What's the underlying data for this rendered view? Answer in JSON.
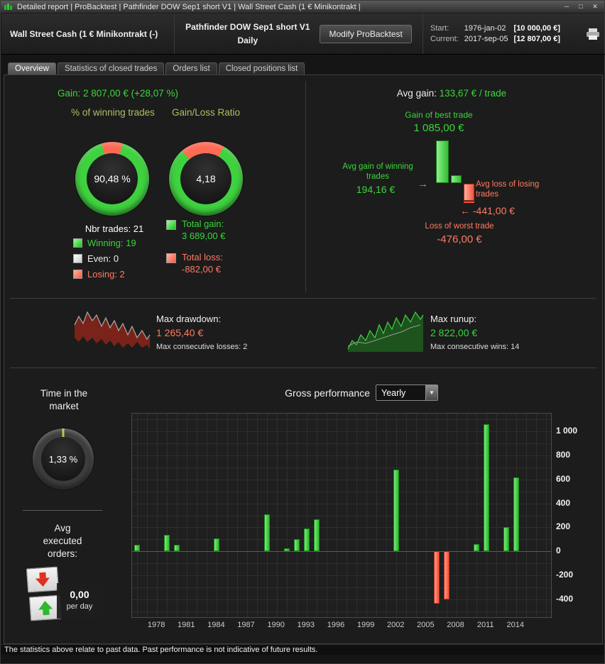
{
  "colors": {
    "win": "#3fd23f",
    "loss": "#ff6a52",
    "win_text": "#3ad63a",
    "loss_text": "#ff7a62",
    "header_green": "#a8c162",
    "zero_line": "#4646ff",
    "time_marker": "#b8c24e"
  },
  "titlebar": {
    "title_text": "Detailed report | ProBacktest | Pathfinder DOW Sep1 short V1 | Wall Street Cash (1 € Minikontrakt |",
    "minimize": "─",
    "maximize": "□",
    "close": "✕"
  },
  "header": {
    "instrument": "Wall Street Cash (1 € Minikontrakt (-)",
    "system_name": "Pathfinder DOW Sep1 short V1",
    "timeframe": "Daily",
    "modify_button": "Modify ProBacktest",
    "start_label": "Start:",
    "start_date": "1976-jan-02",
    "start_value": "[10 000,00 €]",
    "current_label": "Current:",
    "current_date": "2017-sep-05",
    "current_value": "[12 807,00 €]"
  },
  "tabs": [
    {
      "label": "Overview"
    },
    {
      "label": "Statistics of closed trades"
    },
    {
      "label": "Orders list"
    },
    {
      "label": "Closed positions list"
    }
  ],
  "overview": {
    "gain_label": "Gain:",
    "gain_value": "2 807,00 € (+28,07 %)",
    "donut_winning": {
      "label": "% of winning trades",
      "value": "90,48 %",
      "pct": 90.48
    },
    "donut_ratio": {
      "label": "Gain/Loss Ratio",
      "value": "4,18",
      "ratio": 4.18
    },
    "nbr_trades": "Nbr trades: 21",
    "legend": {
      "winning": "Winning: 19",
      "even": "Even: 0",
      "losing": "Losing: 2"
    },
    "total_gain_label": "Total gain:",
    "total_gain_value": "3 689,00 €",
    "total_loss_label": "Total loss:",
    "total_loss_value": "-882,00 €",
    "avg_gain_label": "Avg gain:",
    "avg_gain_value": "133,67 € / trade",
    "best_trade_label": "Gain of best trade",
    "best_trade_value": "1 085,00 €",
    "avg_win_label": "Avg gain of winning trades",
    "avg_win_value": "194,16 €",
    "avg_loss_label": "Avg loss of losing trades",
    "avg_loss_value": "-441,00 €",
    "worst_trade_label": "Loss of worst trade",
    "worst_trade_value": "-476,00 €",
    "drawdown_label": "Max drawdown:",
    "drawdown_value": "1 265,40 €",
    "drawdown_sub": "Max consecutive losses: 2",
    "runup_label": "Max runup:",
    "runup_value": "2 822,00 €",
    "runup_sub": "Max consecutive wins: 14",
    "time_in_market": {
      "label": "Time in the market",
      "value": "1,33 %",
      "pct": 1.33
    },
    "avg_orders_label": "Avg executed orders:",
    "avg_orders_value": "0,00",
    "avg_orders_unit": "per day",
    "gross_performance_label": "Gross performance",
    "period_selected": "Yearly"
  },
  "footer": "The statistics above relate to past data. Past performance is not indicative of future results.",
  "chart_data": [
    {
      "id": "trade-extremes",
      "type": "bar",
      "categories": [
        "Gain of best trade",
        "Avg gain of winning trades",
        "Avg loss of losing trades",
        "Loss of worst trade"
      ],
      "values": [
        1085.0,
        194.16,
        -441.0,
        -476.0
      ]
    },
    {
      "id": "gross-performance-yearly",
      "type": "bar",
      "title": "Gross performance",
      "period": "Yearly",
      "x": [
        1976,
        1979,
        1980,
        1984,
        1989,
        1991,
        1992,
        1993,
        1994,
        2002,
        2006,
        2007,
        2010,
        2011,
        2013,
        2014
      ],
      "values": [
        55,
        140,
        55,
        110,
        310,
        25,
        100,
        190,
        265,
        680,
        -440,
        -405,
        60,
        1060,
        200,
        620
      ],
      "xlim": [
        1975.5,
        2017.5
      ],
      "ylim": [
        -550,
        1150
      ],
      "x_ticks": [
        1978,
        1981,
        1984,
        1987,
        1990,
        1993,
        1996,
        1999,
        2002,
        2005,
        2008,
        2011,
        2014
      ],
      "y_ticks": [
        1000,
        800,
        600,
        400,
        200,
        0,
        -200,
        -400
      ],
      "y_tick_labels": [
        "1 000",
        "800",
        "600",
        "400",
        "200",
        "0",
        "-200",
        "-400"
      ],
      "grid": true,
      "zero_line": true,
      "bar_color_positive": "#3fd23f",
      "bar_color_negative": "#ff6a52"
    }
  ]
}
